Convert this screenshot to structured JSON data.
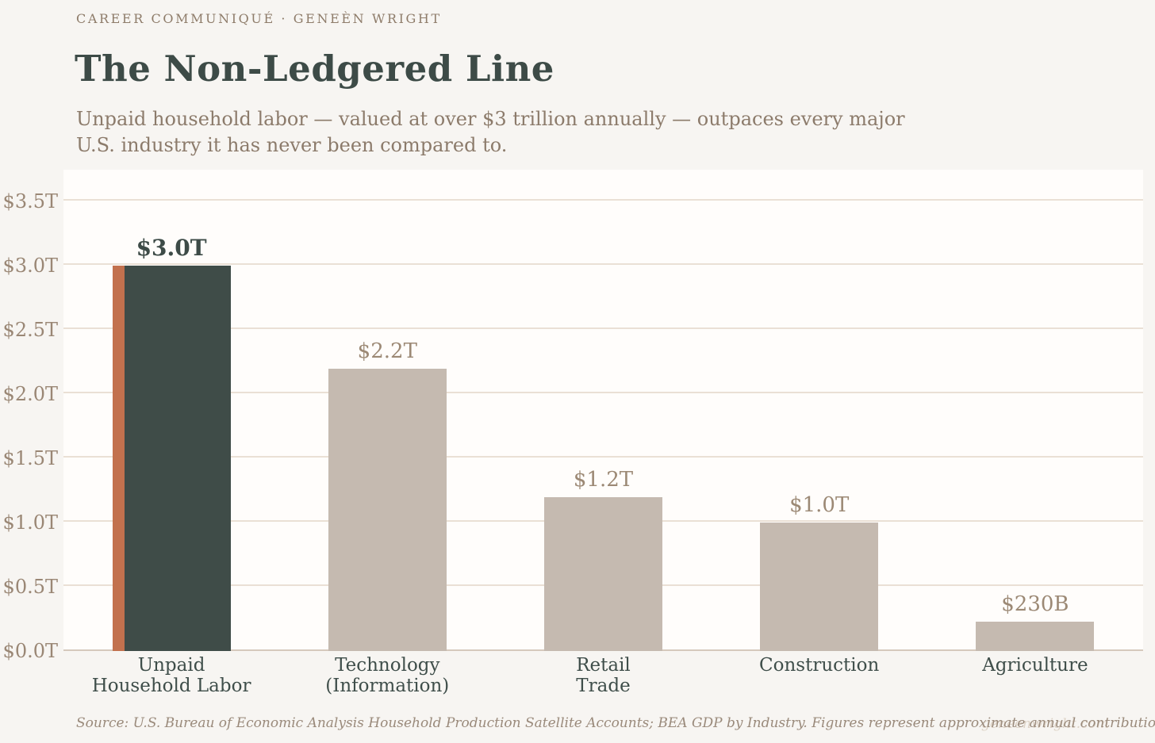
{
  "header": {
    "kicker": "CAREER COMMUNIQUÉ · GENEÈN WRIGHT",
    "title": "The Non-Ledgered Line",
    "subtitle_line1": "Unpaid household labor — valued at over $3 trillion annually — outpaces every major",
    "subtitle_line2": "U.S. industry it has never been compared to."
  },
  "footer": {
    "source": "Source: U.S. Bureau of Economic Analysis Household Production Satellite Accounts; BEA GDP by Industry. Figures represent approximate annual contributions.",
    "watermark": "geneenwright.com"
  },
  "colors": {
    "page_background": "#f7f5f2",
    "plot_background": "#fffdfb",
    "gridline": "#eae0d5",
    "axis_line": "#d5c9bc",
    "highlight_bar": "#3f4c48",
    "highlight_stripe": "#c2714e",
    "default_bar": "#c5bab0",
    "title_text": "#3d4b47",
    "kicker_text": "#8e7c6a",
    "muted_text": "#9a8775"
  },
  "chart_data": {
    "type": "bar",
    "title": "The Non-Ledgered Line",
    "xlabel": "",
    "ylabel": "",
    "categories": [
      "Unpaid Household Labor",
      "Technology (Information)",
      "Retail Trade",
      "Construction",
      "Agriculture"
    ],
    "category_lines": [
      [
        "Unpaid",
        "Household Labor"
      ],
      [
        "Technology",
        "(Information)"
      ],
      [
        "Retail",
        "Trade"
      ],
      [
        "Construction"
      ],
      [
        "Agriculture"
      ]
    ],
    "values_trillions": [
      3.0,
      2.2,
      1.2,
      1.0,
      0.23
    ],
    "value_labels": [
      "$3.0T",
      "$2.2T",
      "$1.2T",
      "$1.0T",
      "$230B"
    ],
    "highlight_index": 0,
    "ylim": [
      0,
      3.75
    ],
    "yticks": {
      "values": [
        0,
        0.5,
        1.0,
        1.5,
        2.0,
        2.5,
        3.0,
        3.5
      ],
      "labels": [
        "$0.0T",
        "$0.5T",
        "$1.0T",
        "$1.5T",
        "$2.0T",
        "$2.5T",
        "$3.0T",
        "$3.5T"
      ]
    },
    "grid": true,
    "legend": "none"
  }
}
